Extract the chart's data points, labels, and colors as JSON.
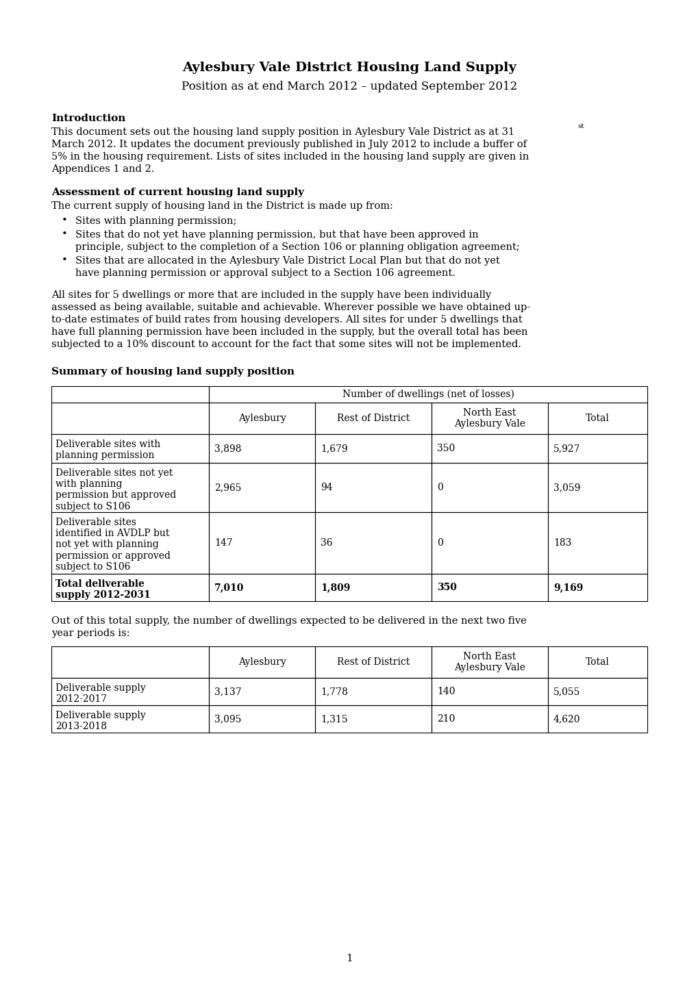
{
  "title_line1": "Aylesbury Vale District Housing Land Supply",
  "title_line2": "Position as at end March 2012 – updated September 2012",
  "intro_heading": "Introduction",
  "intro_text_parts": [
    {
      "text": "This document sets out the housing land supply position in Aylesbury Vale District as at 31",
      "super": false
    },
    {
      "text": "st",
      "super": true
    },
    {
      "text": " March 2012. It updates the document previously published in July 2012 to include a buffer of 5% in the housing requirement. Lists of sites included in the housing land supply are given in Appendices 1 and 2.",
      "super": false
    }
  ],
  "section2_heading": "Assessment of current housing land supply",
  "section2_intro": "The current supply of housing land in the District is made up from:",
  "bullets": [
    "Sites with planning permission;",
    "Sites that do not yet have planning permission, but that have been approved in principle, subject to the completion of a Section 106 or planning obligation agreement;",
    "Sites that are allocated in the Aylesbury Vale District Local Plan but that do not yet have planning permission or approval subject to a Section 106 agreement."
  ],
  "para3": "All sites for 5 dwellings or more that are included in the supply have been individually assessed as being available, suitable and achievable. Wherever possible we have obtained up-to-date estimates of build rates from housing developers. All sites for under 5 dwellings that have full planning permission have been included in the supply, but the overall total has been subjected to a 10% discount to account for the fact that some sites will not be implemented.",
  "section3_heading": "Summary of housing land supply position",
  "table1_header_span": "Number of dwellings (net of losses)",
  "table1_col_headers": [
    "Aylesbury",
    "Rest of District",
    "North East\nAylesbury Vale",
    "Total"
  ],
  "table1_rows": [
    {
      "label": "Deliverable sites with\nplanning permission",
      "values": [
        "3,898",
        "1,679",
        "350",
        "5,927"
      ],
      "bold": false
    },
    {
      "label": "Deliverable sites not yet\nwith planning\npermission but approved\nsubject to S106",
      "values": [
        "2,965",
        "94",
        "0",
        "3,059"
      ],
      "bold": false
    },
    {
      "label": "Deliverable sites\nidentified in AVDLP but\nnot yet with planning\npermission or approved\nsubject to S106",
      "values": [
        "147",
        "36",
        "0",
        "183"
      ],
      "bold": false
    },
    {
      "label": "Total deliverable\nsupply 2012-2031",
      "values": [
        "7,010",
        "1,809",
        "350",
        "9,169"
      ],
      "bold": true
    }
  ],
  "para4": "Out of this total supply, the number of dwellings expected to be delivered in the next two five year periods is:",
  "table2_col_headers": [
    "Aylesbury",
    "Rest of District",
    "North East\nAylesbury Vale",
    "Total"
  ],
  "table2_rows": [
    {
      "label": "Deliverable supply\n2012-2017",
      "values": [
        "3,137",
        "1,778",
        "140",
        "5,055"
      ],
      "bold": false
    },
    {
      "label": "Deliverable supply\n2013-2018",
      "values": [
        "3,095",
        "1,315",
        "210",
        "4,620"
      ],
      "bold": false
    }
  ],
  "page_number": "1",
  "bg_color": "#ffffff",
  "text_color": "#000000"
}
